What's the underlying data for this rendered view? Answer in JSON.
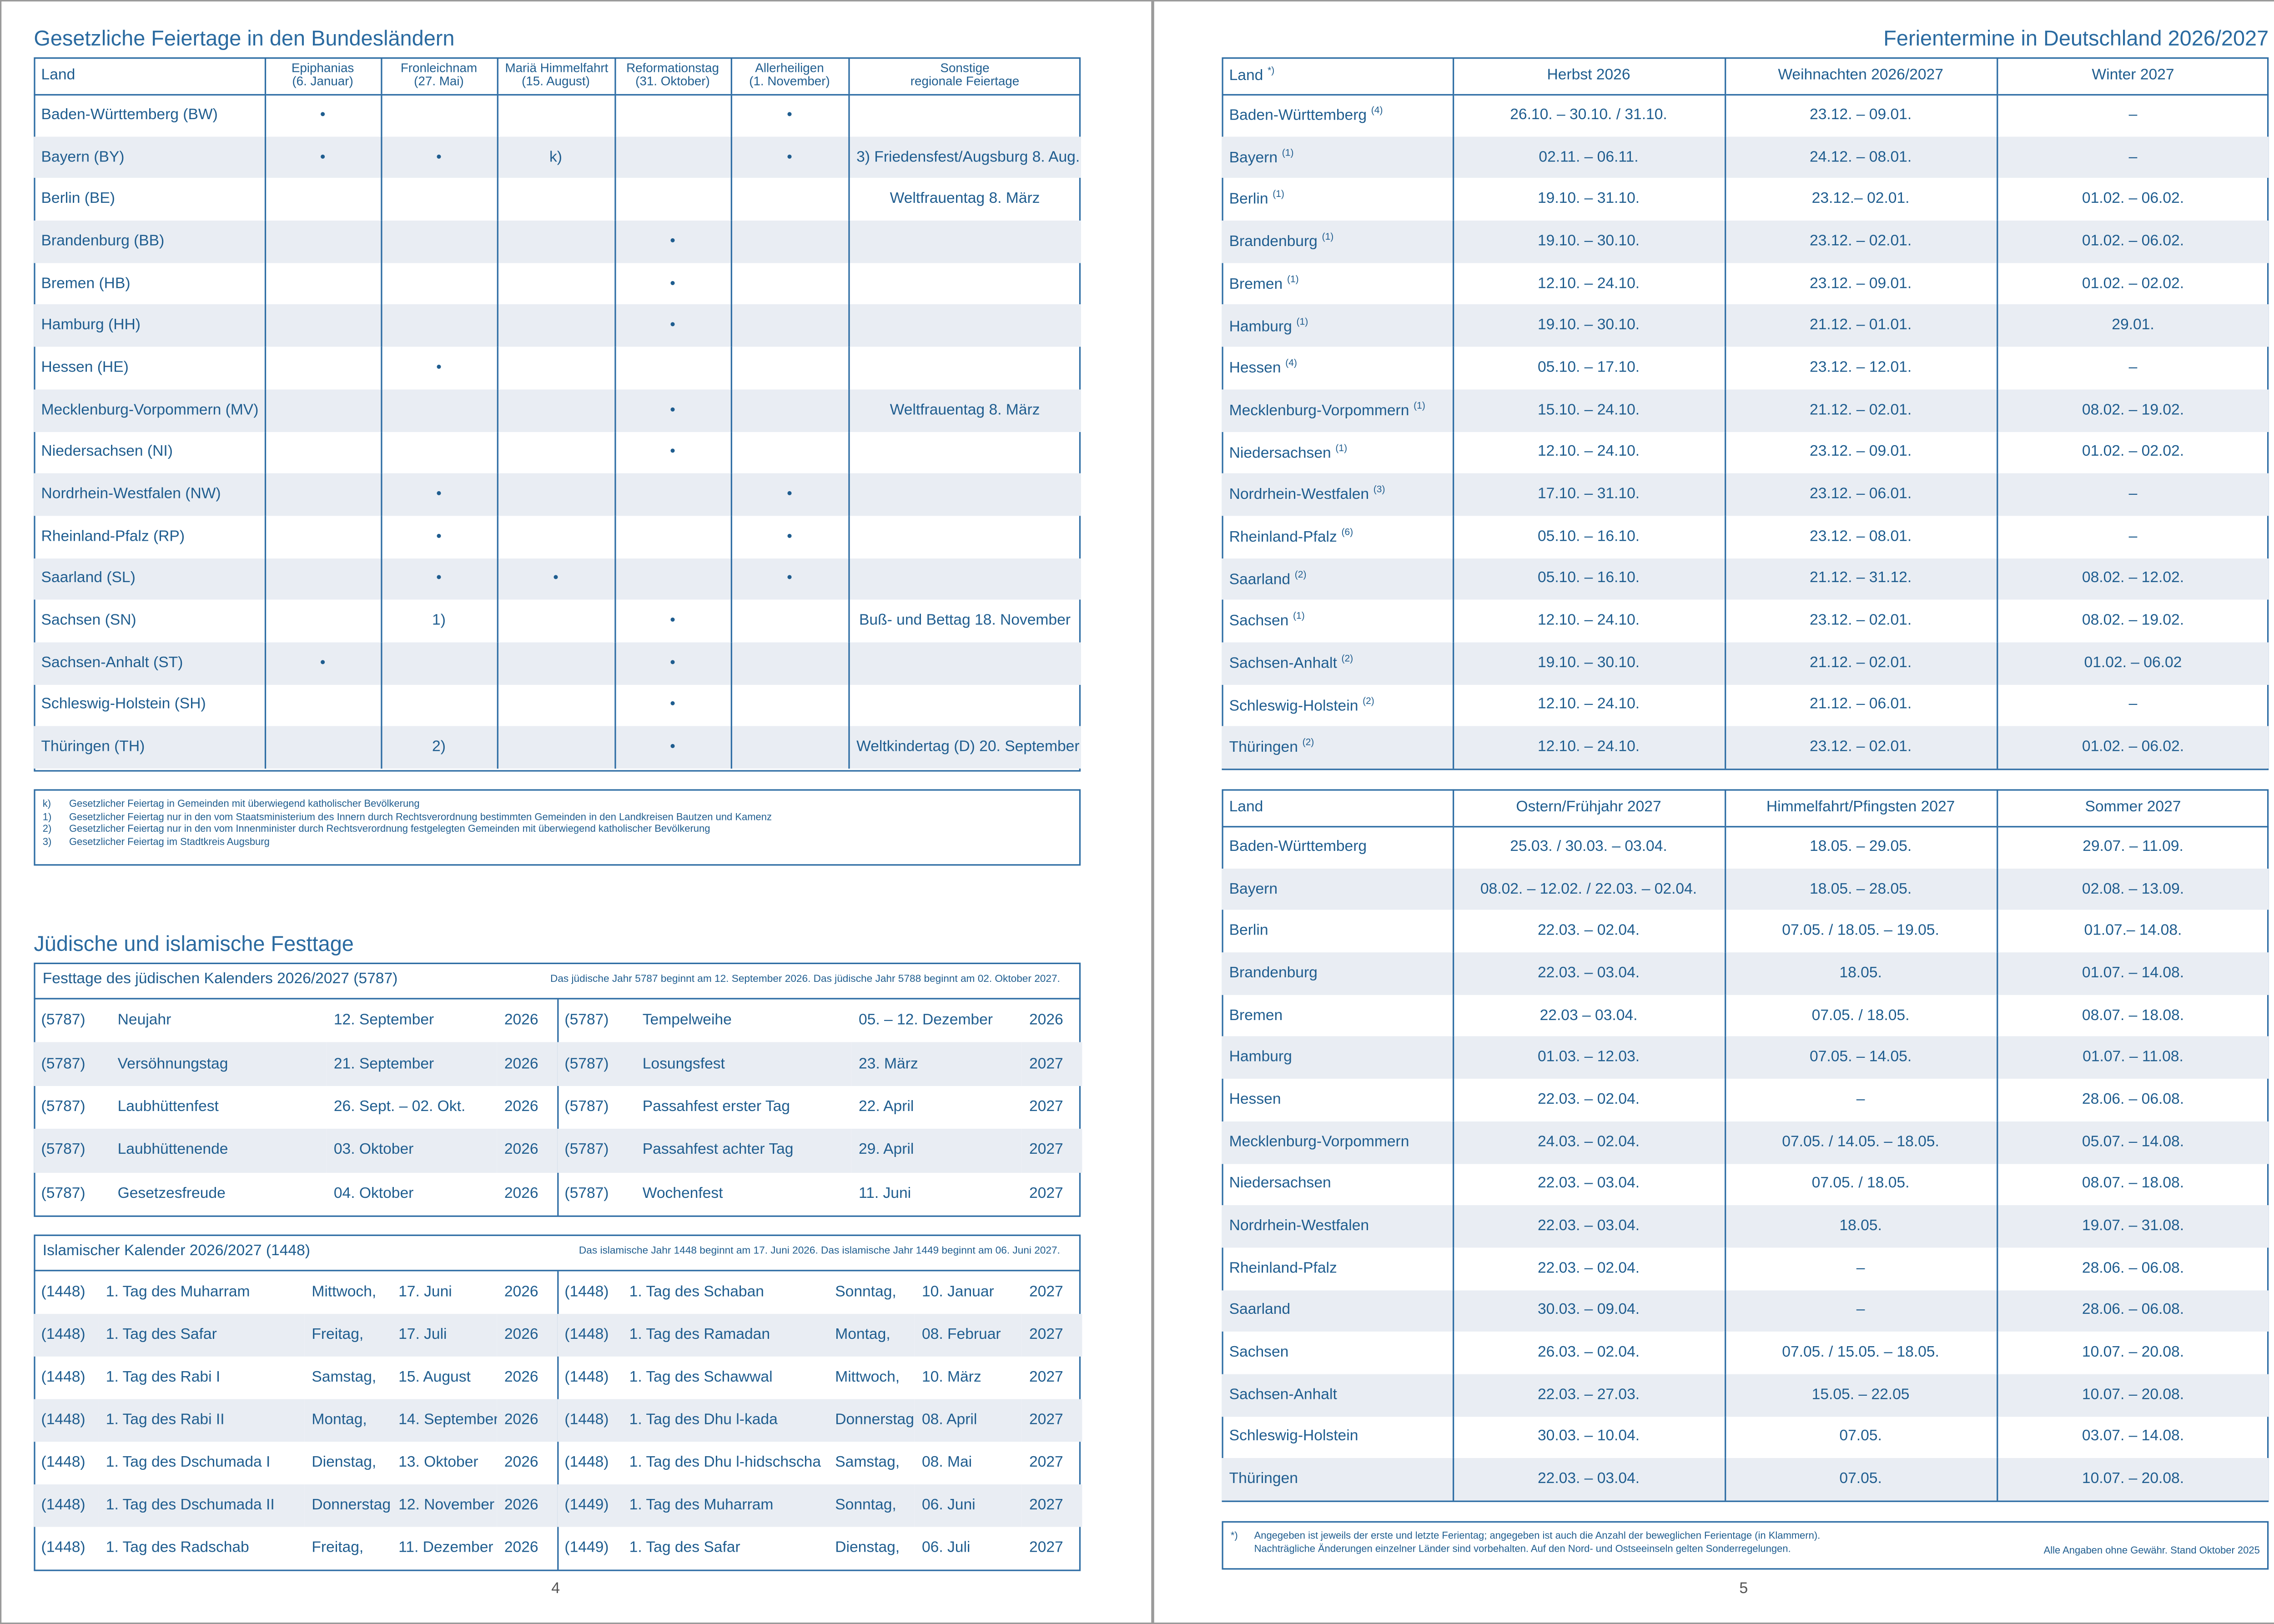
{
  "left_page": {
    "holidays": {
      "title": "Gesetzliche Feiertage in den Bundesländern",
      "header": [
        [
          "Land"
        ],
        [
          "Epiphanias",
          "(6. Januar)"
        ],
        [
          "Fronleichnam",
          "(27. Mai)"
        ],
        [
          "Mariä Himmelfahrt",
          "(15. August)"
        ],
        [
          "Reformationstag",
          "(31. Oktober)"
        ],
        [
          "Allerheiligen",
          "(1. November)"
        ],
        [
          "Sonstige",
          "regionale Feiertage"
        ]
      ],
      "rows": [
        [
          "Baden-Württemberg (BW)",
          "•",
          null,
          null,
          null,
          "•",
          null
        ],
        [
          "Bayern (BY)",
          "•",
          "•",
          "k)",
          null,
          "•",
          "3) Friedensfest/Augsburg 8. Aug."
        ],
        [
          "Berlin (BE)",
          null,
          null,
          null,
          null,
          null,
          "Weltfrauentag 8. März"
        ],
        [
          "Brandenburg (BB)",
          null,
          null,
          null,
          "•",
          null,
          null
        ],
        [
          "Bremen (HB)",
          null,
          null,
          null,
          "•",
          null,
          null
        ],
        [
          "Hamburg (HH)",
          null,
          null,
          null,
          "•",
          null,
          null
        ],
        [
          "Hessen (HE)",
          null,
          "•",
          null,
          null,
          null,
          null
        ],
        [
          "Mecklenburg-Vorpommern (MV)",
          null,
          null,
          null,
          "•",
          null,
          "Weltfrauentag 8. März"
        ],
        [
          "Niedersachsen (NI)",
          null,
          null,
          null,
          "•",
          null,
          null
        ],
        [
          "Nordrhein-Westfalen (NW)",
          null,
          "•",
          null,
          null,
          "•",
          null
        ],
        [
          "Rheinland-Pfalz (RP)",
          null,
          "•",
          null,
          null,
          "•",
          null
        ],
        [
          "Saarland (SL)",
          null,
          "•",
          "•",
          null,
          "•",
          null
        ],
        [
          "Sachsen (SN)",
          null,
          "1)",
          null,
          "•",
          null,
          "Buß- und Bettag 18. November"
        ],
        [
          "Sachsen-Anhalt (ST)",
          "•",
          null,
          null,
          "•",
          null,
          null
        ],
        [
          "Schleswig-Holstein (SH)",
          null,
          null,
          null,
          "•",
          null,
          null
        ],
        [
          "Thüringen (TH)",
          null,
          "2)",
          null,
          "•",
          null,
          "Weltkindertag (D) 20. September"
        ]
      ],
      "footnotes": [
        [
          "k)",
          "Gesetzlicher Feiertag in Gemeinden mit überwiegend katholischer Bevölkerung"
        ],
        [
          "1)",
          "Gesetzlicher Feiertag nur in den vom Staatsministerium des Innern durch Rechtsverordnung bestimmten Gemeinden in den Landkreisen Bautzen und Kamenz"
        ],
        [
          "2)",
          "Gesetzlicher Feiertag nur in den vom Innenminister durch Rechtsverordnung festgelegten Gemeinden mit überwiegend katholischer Bevölkerung"
        ],
        [
          "3)",
          "Gesetzlicher Feiertag im Stadtkreis Augsburg"
        ]
      ]
    },
    "religious_title": "Jüdische und islamische Festtage",
    "jewish": {
      "title": "Festtage des jüdischen Kalenders 2026/2027 (5787)",
      "note": "Das jüdische Jahr 5787 beginnt am 12. September 2026. Das jüdische Jahr 5788 beginnt am 02. Oktober 2027.",
      "left": [
        [
          "(5787)",
          "Neujahr",
          "12. September",
          "2026"
        ],
        [
          "(5787)",
          "Versöhnungstag",
          "21. September",
          "2026"
        ],
        [
          "(5787)",
          "Laubhüttenfest",
          "26. Sept. – 02. Okt.",
          "2026"
        ],
        [
          "(5787)",
          "Laubhüttenende",
          "03. Oktober",
          "2026"
        ],
        [
          "(5787)",
          "Gesetzesfreude",
          "04. Oktober",
          "2026"
        ]
      ],
      "right": [
        [
          "(5787)",
          "Tempelweihe",
          "05. – 12. Dezember",
          "2026"
        ],
        [
          "(5787)",
          "Losungsfest",
          "23. März",
          "2027"
        ],
        [
          "(5787)",
          "Passahfest erster Tag",
          "22. April",
          "2027"
        ],
        [
          "(5787)",
          "Passahfest achter Tag",
          "29. April",
          "2027"
        ],
        [
          "(5787)",
          "Wochenfest",
          "11. Juni",
          "2027"
        ]
      ]
    },
    "islamic": {
      "title": "Islamischer Kalender 2026/2027 (1448)",
      "note": "Das islamische Jahr 1448 beginnt am 17. Juni 2026. Das islamische Jahr 1449 beginnt am 06. Juni 2027.",
      "left": [
        [
          "(1448)",
          "1. Tag des Muharram",
          "Mittwoch,",
          "17. Juni",
          "2026"
        ],
        [
          "(1448)",
          "1. Tag des Safar",
          "Freitag,",
          "17. Juli",
          "2026"
        ],
        [
          "(1448)",
          "1. Tag des Rabi I",
          "Samstag,",
          "15. August",
          "2026"
        ],
        [
          "(1448)",
          "1. Tag des Rabi II",
          "Montag,",
          "14. September",
          "2026"
        ],
        [
          "(1448)",
          "1. Tag des Dschumada I",
          "Dienstag,",
          "13. Oktober",
          "2026"
        ],
        [
          "(1448)",
          "1. Tag des Dschumada II",
          "Donnerstag,",
          "12. November",
          "2026"
        ],
        [
          "(1448)",
          "1. Tag des Radschab",
          "Freitag,",
          "11. Dezember",
          "2026"
        ]
      ],
      "right": [
        [
          "(1448)",
          "1. Tag des Schaban",
          "Sonntag,",
          "10. Januar",
          "2027"
        ],
        [
          "(1448)",
          "1. Tag des Ramadan",
          "Montag,",
          "08. Februar",
          "2027"
        ],
        [
          "(1448)",
          "1. Tag des Schawwal",
          "Mittwoch,",
          "10. März",
          "2027"
        ],
        [
          "(1448)",
          "1. Tag des Dhu l-kada",
          "Donnerstag,",
          "08. April",
          "2027"
        ],
        [
          "(1448)",
          "1. Tag des Dhu l-hidschscha",
          "Samstag,",
          "08. Mai",
          "2027"
        ],
        [
          "(1449)",
          "1. Tag des Muharram",
          "Sonntag,",
          "06. Juni",
          "2027"
        ],
        [
          "(1449)",
          "1. Tag des Safar",
          "Dienstag,",
          "06. Juli",
          "2027"
        ]
      ]
    },
    "page_number": "4"
  },
  "right_page": {
    "title": "Ferientermine in Deutschland 2026/2027",
    "table1": {
      "header": [
        [
          "Land",
          "*)"
        ],
        [
          "Herbst 2026"
        ],
        [
          "Weihnachten 2026/2027"
        ],
        [
          "Winter 2027"
        ]
      ],
      "rows": [
        [
          [
            "Baden-Württemberg",
            "(4)"
          ],
          "26.10. – 30.10. / 31.10.",
          "23.12. – 09.01.",
          "–"
        ],
        [
          [
            "Bayern",
            "(1)"
          ],
          "02.11. – 06.11.",
          "24.12. – 08.01.",
          "–"
        ],
        [
          [
            "Berlin",
            "(1)"
          ],
          "19.10. – 31.10.",
          "23.12.– 02.01.",
          "01.02. – 06.02."
        ],
        [
          [
            "Brandenburg",
            "(1)"
          ],
          "19.10. – 30.10.",
          "23.12. – 02.01.",
          "01.02. – 06.02."
        ],
        [
          [
            "Bremen",
            "(1)"
          ],
          "12.10. – 24.10.",
          "23.12. – 09.01.",
          "01.02. – 02.02."
        ],
        [
          [
            "Hamburg",
            "(1)"
          ],
          "19.10. – 30.10.",
          "21.12. – 01.01.",
          "29.01."
        ],
        [
          [
            "Hessen",
            "(4)"
          ],
          "05.10. – 17.10.",
          "23.12. – 12.01.",
          "–"
        ],
        [
          [
            "Mecklenburg-Vorpommern",
            "(1)"
          ],
          "15.10. – 24.10.",
          "21.12. – 02.01.",
          "08.02. – 19.02."
        ],
        [
          [
            "Niedersachsen",
            "(1)"
          ],
          "12.10. – 24.10.",
          "23.12. – 09.01.",
          "01.02. – 02.02."
        ],
        [
          [
            "Nordrhein-Westfalen",
            "(3)"
          ],
          "17.10. – 31.10.",
          "23.12. – 06.01.",
          "–"
        ],
        [
          [
            "Rheinland-Pfalz",
            "(6)"
          ],
          "05.10. – 16.10.",
          "23.12. – 08.01.",
          "–"
        ],
        [
          [
            "Saarland",
            "(2)"
          ],
          "05.10. – 16.10.",
          "21.12. – 31.12.",
          "08.02. – 12.02."
        ],
        [
          [
            "Sachsen",
            "(1)"
          ],
          "12.10. – 24.10.",
          "23.12. – 02.01.",
          "08.02. – 19.02."
        ],
        [
          [
            "Sachsen-Anhalt",
            "(2)"
          ],
          "19.10. – 30.10.",
          "21.12. – 02.01.",
          "01.02. – 06.02"
        ],
        [
          [
            "Schleswig-Holstein",
            "(2)"
          ],
          "12.10. – 24.10.",
          "21.12. – 06.01.",
          "–"
        ],
        [
          [
            "Thüringen",
            "(2)"
          ],
          "12.10. – 24.10.",
          "23.12. – 02.01.",
          "01.02. – 06.02."
        ]
      ]
    },
    "table2": {
      "header": [
        [
          "Land"
        ],
        [
          "Ostern/Frühjahr 2027"
        ],
        [
          "Himmelfahrt/Pfingsten 2027"
        ],
        [
          "Sommer 2027"
        ]
      ],
      "rows": [
        [
          [
            "Baden-Württemberg"
          ],
          "25.03. / 30.03. – 03.04.",
          "18.05. – 29.05.",
          "29.07. – 11.09."
        ],
        [
          [
            "Bayern"
          ],
          "08.02. – 12.02. / 22.03. – 02.04.",
          "18.05. – 28.05.",
          "02.08. – 13.09."
        ],
        [
          [
            "Berlin"
          ],
          "22.03. – 02.04.",
          "07.05. / 18.05. – 19.05.",
          "01.07.– 14.08."
        ],
        [
          [
            "Brandenburg"
          ],
          "22.03. – 03.04.",
          "18.05.",
          "01.07. – 14.08."
        ],
        [
          [
            "Bremen"
          ],
          "22.03 – 03.04.",
          "07.05. / 18.05.",
          "08.07. – 18.08."
        ],
        [
          [
            "Hamburg"
          ],
          "01.03. – 12.03.",
          "07.05. – 14.05.",
          "01.07. – 11.08."
        ],
        [
          [
            "Hessen"
          ],
          "22.03. – 02.04.",
          "–",
          "28.06. – 06.08."
        ],
        [
          [
            "Mecklenburg-Vorpommern"
          ],
          "24.03. – 02.04.",
          "07.05. / 14.05. – 18.05.",
          "05.07. – 14.08."
        ],
        [
          [
            "Niedersachsen"
          ],
          "22.03. – 03.04.",
          "07.05. / 18.05.",
          "08.07. – 18.08."
        ],
        [
          [
            "Nordrhein-Westfalen"
          ],
          "22.03. – 03.04.",
          "18.05.",
          "19.07. – 31.08."
        ],
        [
          [
            "Rheinland-Pfalz"
          ],
          "22.03. – 02.04.",
          "–",
          "28.06. – 06.08."
        ],
        [
          [
            "Saarland"
          ],
          "30.03. – 09.04.",
          "–",
          "28.06. – 06.08."
        ],
        [
          [
            "Sachsen"
          ],
          "26.03. – 02.04.",
          "07.05. / 15.05. – 18.05.",
          "10.07. – 20.08."
        ],
        [
          [
            "Sachsen-Anhalt"
          ],
          "22.03. – 27.03.",
          "15.05. – 22.05",
          "10.07. – 20.08."
        ],
        [
          [
            "Schleswig-Holstein"
          ],
          "30.03. – 10.04.",
          "07.05.",
          "03.07. – 14.08."
        ],
        [
          [
            "Thüringen"
          ],
          "22.03. – 03.04.",
          "07.05.",
          "10.07. – 20.08."
        ]
      ]
    },
    "footnote": {
      "mark": "*)",
      "lines": [
        "Angegeben ist jeweils der erste und letzte Ferientag; angegeben ist auch die Anzahl der beweglichen Ferientage (in Klammern).",
        "Nachträgliche Änderungen einzelner Länder sind vorbehalten. Auf den Nord- und Ostseeinseln gelten Sonderregelungen."
      ],
      "disclaimer": "Alle Angaben ohne Gewähr. Stand Oktober 2025"
    },
    "page_number": "5"
  }
}
